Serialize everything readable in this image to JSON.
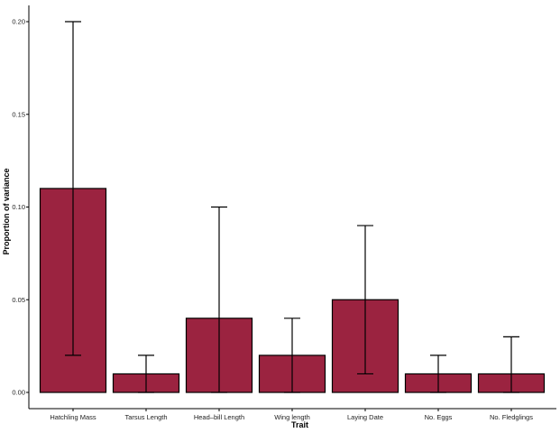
{
  "chart_data": {
    "type": "bar",
    "title": "",
    "xlabel": "Trait",
    "ylabel": "Proportion of variance",
    "categories": [
      "Hatchling Mass",
      "Tarsus Length",
      "Head–bill Length",
      "Wing length",
      "Laying Date",
      "No. Eggs",
      "No. Fledglings"
    ],
    "values": [
      0.11,
      0.01,
      0.04,
      0.02,
      0.05,
      0.01,
      0.01
    ],
    "error_lower": [
      0.02,
      0.0,
      0.0,
      0.0,
      0.01,
      0.0,
      0.0
    ],
    "error_upper": [
      0.2,
      0.02,
      0.1,
      0.04,
      0.09,
      0.02,
      0.03
    ],
    "ylim": [
      0,
      0.205
    ],
    "yticks": [
      "0.00",
      "0.05",
      "0.10",
      "0.15",
      "0.20"
    ],
    "bar_color": "#9b2340",
    "grid": false,
    "legend": "none"
  }
}
